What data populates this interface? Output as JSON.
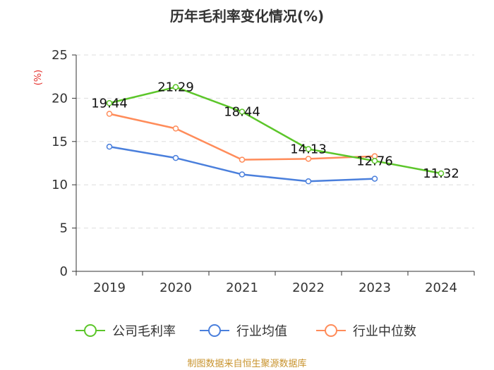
{
  "chart_data": {
    "type": "line",
    "title": "历年毛利率变化情况(%)",
    "ylabel": "(%)",
    "xlabel": "",
    "categories": [
      "2019",
      "2020",
      "2021",
      "2022",
      "2023",
      "2024"
    ],
    "ylim": [
      0,
      25
    ],
    "yticks": [
      0,
      5,
      10,
      15,
      20,
      25
    ],
    "grid": true,
    "legend_position": "bottom",
    "series": [
      {
        "name": "公司毛利率",
        "color": "#5cc62a",
        "values": [
          19.44,
          21.29,
          18.44,
          14.13,
          12.76,
          11.32
        ],
        "labels": [
          "19.44",
          "21.29",
          "18.44",
          "14.13",
          "12.76",
          "11.32"
        ]
      },
      {
        "name": "行业均值",
        "color": "#4a7fdc",
        "values": [
          14.4,
          13.1,
          11.2,
          10.4,
          10.7,
          null
        ]
      },
      {
        "name": "行业中位数",
        "color": "#ff8c5a",
        "values": [
          18.2,
          16.5,
          12.9,
          13.0,
          13.3,
          null
        ]
      }
    ]
  },
  "source": "制图数据来自恒生聚源数据库"
}
